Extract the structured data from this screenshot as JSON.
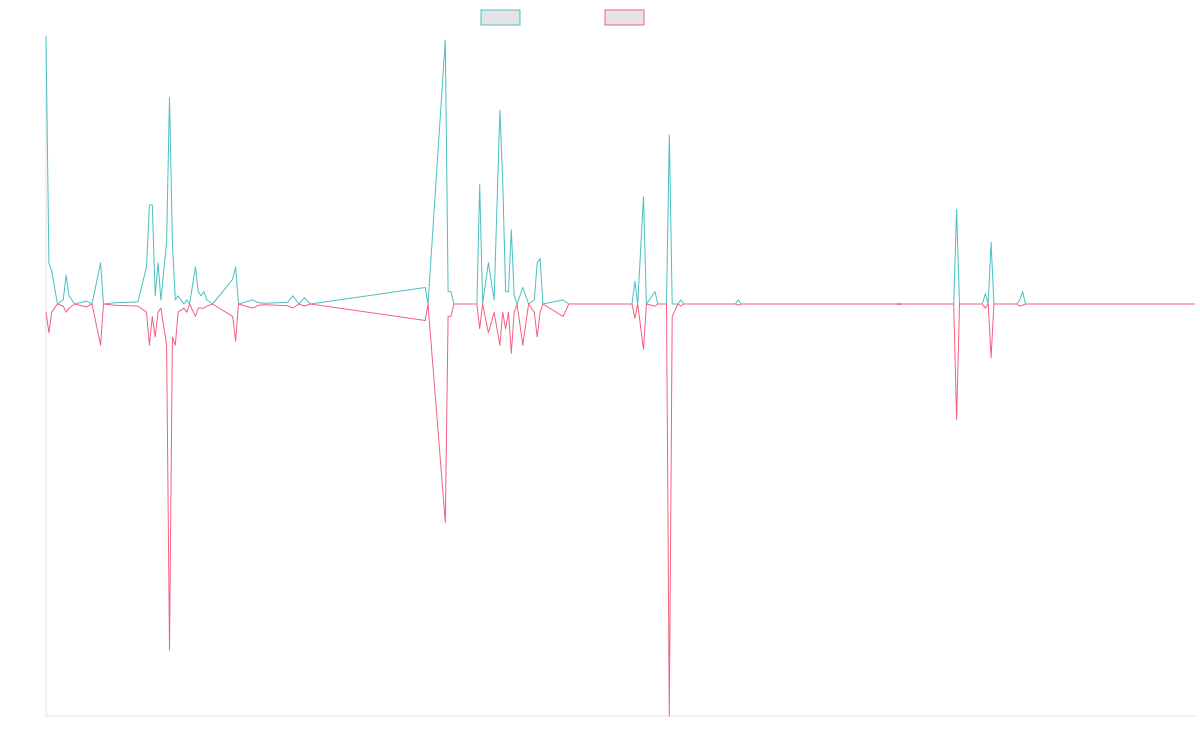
{
  "chart_data": {
    "type": "line",
    "title": "",
    "xlabel": "",
    "ylabel": "",
    "grid": false,
    "legend_position": "top-center",
    "x_range": [
      0,
      200
    ],
    "ylim": [
      -1.0,
      0.65
    ],
    "series": [
      {
        "color": "#4bc0c0",
        "fill": "#e4e4e4",
        "points": [
          [
            0,
            0.65
          ],
          [
            0.5,
            0.1
          ],
          [
            1,
            0.08
          ],
          [
            2,
            0
          ],
          [
            3,
            0.01
          ],
          [
            3.5,
            0.07
          ],
          [
            4,
            0.02
          ],
          [
            5,
            0
          ],
          [
            7,
            0.007
          ],
          [
            8,
            0
          ],
          [
            9.5,
            0.1
          ],
          [
            10,
            0
          ],
          [
            12,
            0.003
          ],
          [
            16,
            0.005
          ],
          [
            17.5,
            0.09
          ],
          [
            18,
            0.24
          ],
          [
            18.5,
            0.24
          ],
          [
            19,
            0.02
          ],
          [
            19.5,
            0.1
          ],
          [
            20,
            0.01
          ],
          [
            21,
            0.15
          ],
          [
            21.5,
            0.5
          ],
          [
            22,
            0.15
          ],
          [
            22.5,
            0.01
          ],
          [
            23,
            0.02
          ],
          [
            24,
            0
          ],
          [
            24.5,
            0.01
          ],
          [
            25,
            0
          ],
          [
            26,
            0.09
          ],
          [
            26.5,
            0.03
          ],
          [
            27,
            0.02
          ],
          [
            27.5,
            0.03
          ],
          [
            28,
            0.01
          ],
          [
            29,
            0
          ],
          [
            32.5,
            0.06
          ],
          [
            33,
            0.09
          ],
          [
            33.5,
            0
          ],
          [
            36,
            0.01
          ],
          [
            37,
            0.003
          ],
          [
            38,
            0.002
          ],
          [
            42,
            0.004
          ],
          [
            43,
            0.02
          ],
          [
            44,
            0
          ],
          [
            45,
            0.015
          ],
          [
            46,
            0
          ],
          [
            66,
            0.04
          ],
          [
            66.5,
            0
          ],
          [
            69.5,
            0.64
          ],
          [
            70,
            0.03
          ],
          [
            70.5,
            0.03
          ],
          [
            71,
            0
          ],
          [
            75,
            0
          ],
          [
            75.5,
            0.29
          ],
          [
            76,
            0
          ],
          [
            77,
            0.1
          ],
          [
            78,
            0.01
          ],
          [
            79,
            0.47
          ],
          [
            79.5,
            0.3
          ],
          [
            80,
            0.03
          ],
          [
            80.5,
            0.03
          ],
          [
            81,
            0.18
          ],
          [
            81.5,
            0.02
          ],
          [
            82,
            0
          ],
          [
            83,
            0.04
          ],
          [
            84,
            0
          ],
          [
            85,
            0.01
          ],
          [
            85.5,
            0.1
          ],
          [
            86,
            0.11
          ],
          [
            86.5,
            0
          ],
          [
            90,
            0.01
          ],
          [
            91,
            0
          ],
          [
            102,
            0
          ],
          [
            102.5,
            0.055
          ],
          [
            103,
            0
          ],
          [
            104,
            0.26
          ],
          [
            104.5,
            0
          ],
          [
            106,
            0.03
          ],
          [
            106.5,
            0
          ],
          [
            108,
            0
          ],
          [
            108.5,
            0.41
          ],
          [
            109,
            0
          ],
          [
            110,
            0
          ],
          [
            110.5,
            0.01
          ],
          [
            111,
            0
          ],
          [
            120,
            0
          ],
          [
            120.5,
            0.01
          ],
          [
            121,
            0
          ],
          [
            148,
            0
          ],
          [
            148.5,
            0.002
          ],
          [
            149,
            0
          ],
          [
            158,
            0
          ],
          [
            158.5,
            0.23
          ],
          [
            159,
            0
          ],
          [
            163,
            0
          ],
          [
            163.5,
            0.025
          ],
          [
            164,
            0
          ],
          [
            164.5,
            0.15
          ],
          [
            165,
            0
          ],
          [
            169,
            0
          ],
          [
            169.5,
            0.01
          ],
          [
            170,
            0.03
          ],
          [
            170.5,
            0
          ],
          [
            200,
            0
          ]
        ]
      },
      {
        "color": "#f25f7f",
        "fill": "#e4e4e4",
        "points": [
          [
            0,
            -0.02
          ],
          [
            0.5,
            -0.07
          ],
          [
            1,
            -0.02
          ],
          [
            2,
            0
          ],
          [
            3,
            -0.005
          ],
          [
            3.5,
            -0.02
          ],
          [
            4,
            -0.01
          ],
          [
            5,
            0
          ],
          [
            7,
            -0.007
          ],
          [
            8,
            0
          ],
          [
            9.5,
            -0.1
          ],
          [
            10,
            0
          ],
          [
            12,
            -0.003
          ],
          [
            16,
            -0.005
          ],
          [
            17.5,
            -0.02
          ],
          [
            18,
            -0.1
          ],
          [
            18.5,
            -0.03
          ],
          [
            19,
            -0.08
          ],
          [
            19.5,
            -0.02
          ],
          [
            20,
            -0.01
          ],
          [
            21,
            -0.1
          ],
          [
            21.5,
            -0.84
          ],
          [
            22,
            -0.08
          ],
          [
            22.5,
            -0.1
          ],
          [
            23,
            -0.02
          ],
          [
            24,
            -0.01
          ],
          [
            24.5,
            -0.02
          ],
          [
            25,
            0
          ],
          [
            26,
            -0.03
          ],
          [
            26.5,
            -0.01
          ],
          [
            27,
            -0.01
          ],
          [
            27.5,
            -0.01
          ],
          [
            28,
            -0.005
          ],
          [
            29,
            0
          ],
          [
            32.5,
            -0.03
          ],
          [
            33,
            -0.09
          ],
          [
            33.5,
            0
          ],
          [
            36,
            -0.01
          ],
          [
            37,
            -0.003
          ],
          [
            38,
            -0.002
          ],
          [
            42,
            -0.004
          ],
          [
            43,
            -0.01
          ],
          [
            44,
            0
          ],
          [
            45,
            -0.005
          ],
          [
            46,
            0
          ],
          [
            66,
            -0.04
          ],
          [
            66.5,
            0
          ],
          [
            69.5,
            -0.53
          ],
          [
            70,
            -0.03
          ],
          [
            70.5,
            -0.03
          ],
          [
            71,
            0
          ],
          [
            75,
            0
          ],
          [
            75.5,
            -0.06
          ],
          [
            76,
            0
          ],
          [
            77,
            -0.07
          ],
          [
            78,
            -0.02
          ],
          [
            79,
            -0.1
          ],
          [
            79.5,
            -0.02
          ],
          [
            80,
            -0.06
          ],
          [
            80.5,
            -0.02
          ],
          [
            81,
            -0.12
          ],
          [
            81.5,
            -0.02
          ],
          [
            82,
            0
          ],
          [
            83,
            -0.1
          ],
          [
            84,
            0
          ],
          [
            85,
            -0.02
          ],
          [
            85.5,
            -0.08
          ],
          [
            86,
            -0.02
          ],
          [
            86.5,
            0
          ],
          [
            90,
            -0.03
          ],
          [
            91,
            0
          ],
          [
            102,
            0
          ],
          [
            102.5,
            -0.035
          ],
          [
            103,
            0
          ],
          [
            104,
            -0.11
          ],
          [
            104.5,
            0
          ],
          [
            106,
            -0.005
          ],
          [
            106.5,
            0
          ],
          [
            108,
            0
          ],
          [
            108.5,
            -1.0
          ],
          [
            109,
            -0.03
          ],
          [
            110,
            0
          ],
          [
            110.5,
            -0.005
          ],
          [
            111,
            0
          ],
          [
            120,
            0
          ],
          [
            120.5,
            -0.003
          ],
          [
            121,
            0
          ],
          [
            148,
            0
          ],
          [
            148.5,
            -0.002
          ],
          [
            149,
            0
          ],
          [
            158,
            0
          ],
          [
            158.5,
            -0.28
          ],
          [
            159,
            0
          ],
          [
            163,
            0
          ],
          [
            163.5,
            -0.01
          ],
          [
            164,
            0
          ],
          [
            164.5,
            -0.13
          ],
          [
            165,
            0
          ],
          [
            169,
            0
          ],
          [
            169.5,
            -0.005
          ],
          [
            170,
            -0.003
          ],
          [
            170.5,
            0
          ],
          [
            200,
            0
          ]
        ]
      }
    ]
  }
}
